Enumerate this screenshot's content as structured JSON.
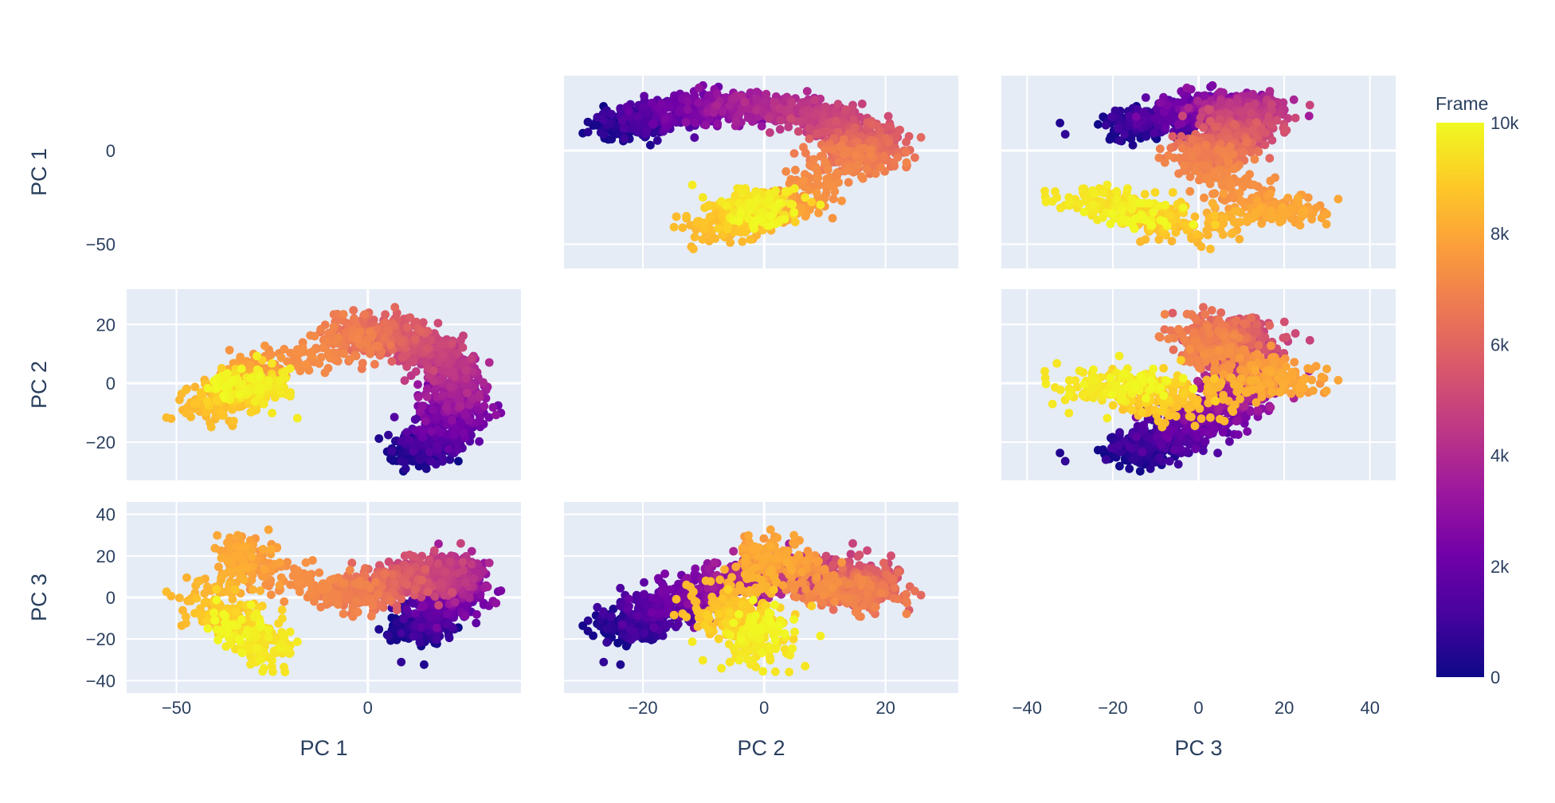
{
  "chart_data": {
    "type": "scatter",
    "subtype": "scatter-matrix",
    "dimensions": [
      "PC 1",
      "PC 2",
      "PC 3"
    ],
    "color_variable": "Frame",
    "colorscale": [
      "#0d0887",
      "#46039f",
      "#7201a8",
      "#9c179e",
      "#bd3786",
      "#d8576b",
      "#ed7953",
      "#fb9f3a",
      "#fdca26",
      "#f0f921"
    ],
    "color_range": [
      0,
      10000
    ],
    "colorbar": {
      "title": "Frame",
      "tick_values": [
        0,
        2000,
        4000,
        6000,
        8000,
        10000
      ],
      "tick_labels": [
        "0",
        "2k",
        "4k",
        "6k",
        "8k",
        "10k"
      ]
    },
    "axes": {
      "PC 1": {
        "range": [
          -63,
          40
        ],
        "ticks": [
          -50,
          0
        ],
        "tick_labels": [
          "−50",
          "0"
        ]
      },
      "PC 2": {
        "range": [
          -33,
          32
        ],
        "ticks": [
          -20,
          0,
          20
        ],
        "tick_labels": [
          "−20",
          "0",
          "20"
        ]
      },
      "PC 3": {
        "range": [
          -46,
          46
        ],
        "ticks": [
          -40,
          -20,
          0,
          20,
          40
        ],
        "tick_labels": [
          "−40",
          "−20",
          "0",
          "20",
          "40"
        ]
      }
    },
    "trajectory_keypoints": [
      {
        "frame": 0,
        "pc1": 12,
        "pc2": -24,
        "pc3": -16
      },
      {
        "frame": 1000,
        "pc1": 17,
        "pc2": -20,
        "pc3": -10
      },
      {
        "frame": 2000,
        "pc1": 21,
        "pc2": -13,
        "pc3": 0
      },
      {
        "frame": 3000,
        "pc1": 24,
        "pc2": -6,
        "pc3": 7
      },
      {
        "frame": 4000,
        "pc1": 23,
        "pc2": 3,
        "pc3": 13
      },
      {
        "frame": 5000,
        "pc1": 15,
        "pc2": 13,
        "pc3": 11
      },
      {
        "frame": 6000,
        "pc1": 2,
        "pc2": 18,
        "pc3": 6
      },
      {
        "frame": 7000,
        "pc1": -6,
        "pc2": 14,
        "pc3": 0
      },
      {
        "frame": 7500,
        "pc1": -30,
        "pc2": 4,
        "pc3": 15
      },
      {
        "frame": 8000,
        "pc1": -32,
        "pc2": 2,
        "pc3": 22
      },
      {
        "frame": 8500,
        "pc1": -42,
        "pc2": -8,
        "pc3": -6
      },
      {
        "frame": 9000,
        "pc1": -33,
        "pc2": -2,
        "pc3": -10
      },
      {
        "frame": 9500,
        "pc1": -24,
        "pc2": -2,
        "pc3": -28
      },
      {
        "frame": 10000,
        "pc1": -38,
        "pc2": 0,
        "pc3": -10
      }
    ]
  }
}
